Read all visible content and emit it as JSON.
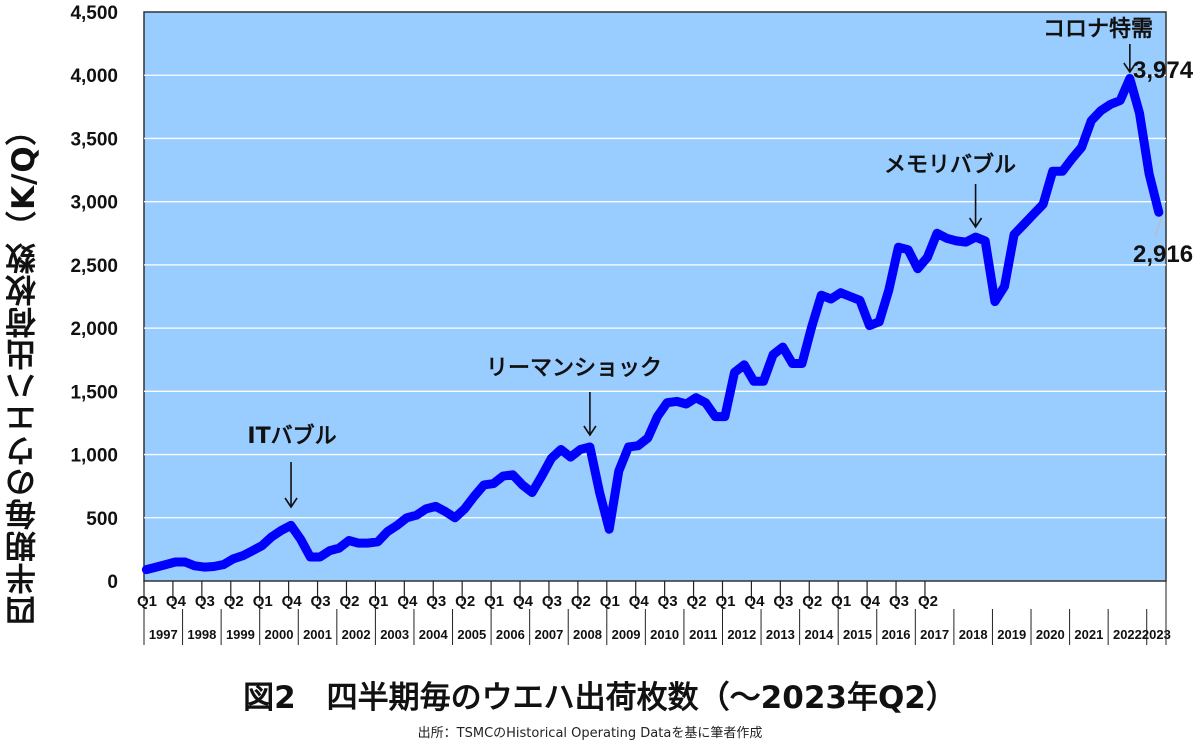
{
  "chart_data": {
    "type": "line",
    "title": "図2　四半期毎のウエハ出荷枚数（～2023年Q2）",
    "source": "出所：TSMCのHistorical Operating Dataを基に筆者作成",
    "xlabel": "",
    "ylabel": "四半期毎のウエハ出荷枚数（K/Q）",
    "ylim": [
      0,
      4500
    ],
    "yticks": [
      0,
      500,
      1000,
      1500,
      2000,
      2500,
      3000,
      3500,
      4000,
      4500
    ],
    "ytick_labels": [
      "0",
      "500",
      "1,000",
      "1,500",
      "2,000",
      "2,500",
      "3,000",
      "3,500",
      "4,000",
      "4,500"
    ],
    "grid": true,
    "legend": null,
    "plot_background": "#99ccff",
    "line_color": "#0000ff",
    "quarter_tick_labels": [
      "Q1",
      "Q4",
      "Q3",
      "Q2",
      "Q1",
      "Q4",
      "Q3",
      "Q2",
      "Q1",
      "Q4",
      "Q3",
      "Q2",
      "Q1",
      "Q4",
      "Q3",
      "Q2",
      "Q1",
      "Q4",
      "Q3",
      "Q2",
      "Q1",
      "Q4",
      "Q3",
      "Q2",
      "Q1",
      "Q4",
      "Q3",
      "Q2"
    ],
    "year_labels": [
      "1997",
      "1998",
      "1999",
      "2000",
      "2001",
      "2002",
      "2003",
      "2004",
      "2005",
      "2006",
      "2007",
      "2008",
      "2009",
      "2010",
      "2011",
      "2012",
      "2013",
      "2014",
      "2015",
      "2016",
      "2017",
      "2018",
      "2019",
      "2020",
      "2021",
      "2022",
      "2023"
    ],
    "series": [
      {
        "name": "ウエハ出荷枚数 (K/Q)",
        "start": "1997 Q1",
        "end": "2023 Q2",
        "values": [
          90,
          110,
          130,
          150,
          150,
          120,
          110,
          115,
          130,
          175,
          200,
          240,
          280,
          350,
          400,
          440,
          330,
          190,
          190,
          240,
          260,
          320,
          300,
          300,
          310,
          390,
          440,
          500,
          520,
          570,
          590,
          550,
          500,
          570,
          670,
          760,
          770,
          830,
          840,
          760,
          700,
          830,
          970,
          1040,
          980,
          1040,
          1060,
          700,
          410,
          870,
          1060,
          1070,
          1130,
          1300,
          1410,
          1420,
          1400,
          1450,
          1410,
          1300,
          1300,
          1650,
          1710,
          1580,
          1580,
          1790,
          1850,
          1720,
          1720,
          2010,
          2260,
          2230,
          2280,
          2250,
          2220,
          2020,
          2050,
          2300,
          2640,
          2620,
          2470,
          2560,
          2750,
          2710,
          2690,
          2680,
          2720,
          2690,
          2210,
          2330,
          2740,
          2820,
          2900,
          2980,
          3240,
          3240,
          3340,
          3430,
          3640,
          3720,
          3770,
          3800,
          3974,
          3700,
          3220,
          2916
        ]
      }
    ],
    "annotations": [
      {
        "text": "ITバブル",
        "quarter_index": 15,
        "arrow": true
      },
      {
        "text": "リーマンショック",
        "quarter_index": 46,
        "arrow": true
      },
      {
        "text": "メモリバブル",
        "quarter_index": 86,
        "arrow": true
      },
      {
        "text": "コロナ特需",
        "quarter_index": 102,
        "arrow": true
      }
    ],
    "data_labels": [
      {
        "text": "3,974",
        "quarter_index": 102
      },
      {
        "text": "2,916",
        "quarter_index": 105
      }
    ]
  }
}
